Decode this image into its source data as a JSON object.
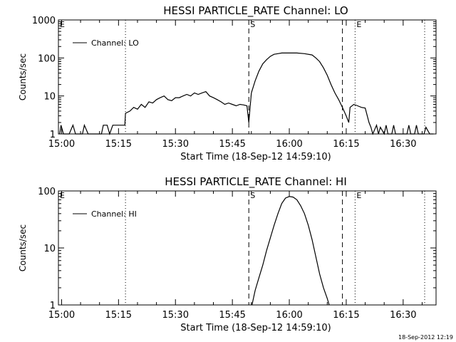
{
  "footer": {
    "timestamp": "18-Sep-2012 12:19"
  },
  "chart_data": [
    {
      "type": "line",
      "title": "HESSI PARTICLE_RATE Channel: LO",
      "xlabel": "Start Time (18-Sep-12 14:59:10)",
      "ylabel": "Counts/sec",
      "y_scale": "log",
      "xlim": [
        "14:59:10",
        "16:38:40"
      ],
      "ylim": [
        1,
        1000
      ],
      "x_ticks": [
        "15:00",
        "15:15",
        "15:30",
        "15:45",
        "16:00",
        "16:15",
        "16:30"
      ],
      "y_ticks": [
        "1",
        "10",
        "100",
        "1000"
      ],
      "legend": {
        "position": "top-left",
        "entries": [
          "Channel: LO"
        ]
      },
      "dashed_markers": [
        {
          "label": "S",
          "x": "15:49:20"
        },
        {
          "label": "E",
          "x": "16:14:00"
        }
      ],
      "dotted_lines": [
        "15:16:50",
        "16:17:20",
        "16:35:40"
      ],
      "series": [
        {
          "name": "Channel: LO",
          "x": [
            "14:59:30",
            "14:59:50",
            "15:00:30",
            "15:01:10",
            "15:02:00",
            "15:03:00",
            "15:03:40",
            "15:04:30",
            "15:05:30",
            "15:06:00",
            "15:07:00",
            "15:08:00",
            "15:08:30",
            "15:09:20",
            "15:10:30",
            "15:11:00",
            "15:12:00",
            "15:12:40",
            "15:13:30",
            "15:14:00",
            "15:15:00",
            "15:16:40",
            "15:16:50",
            "15:18:00",
            "15:19:00",
            "15:20:00",
            "15:21:00",
            "15:22:00",
            "15:23:00",
            "15:24:00",
            "15:25:00",
            "15:26:00",
            "15:27:00",
            "15:28:00",
            "15:29:00",
            "15:30:00",
            "15:31:00",
            "15:32:00",
            "15:33:00",
            "15:34:00",
            "15:35:00",
            "15:36:00",
            "15:37:00",
            "15:38:00",
            "15:39:00",
            "15:40:00",
            "15:41:00",
            "15:42:00",
            "15:43:00",
            "15:44:00",
            "15:45:00",
            "15:46:00",
            "15:47:00",
            "15:48:00",
            "15:48:50",
            "15:49:20",
            "15:49:40",
            "15:50:00",
            "15:51:00",
            "15:52:00",
            "15:53:00",
            "15:54:00",
            "15:55:00",
            "15:56:00",
            "15:57:00",
            "15:58:00",
            "16:00:00",
            "16:02:00",
            "16:04:00",
            "16:06:00",
            "16:07:00",
            "16:08:00",
            "16:09:00",
            "16:10:00",
            "16:11:00",
            "16:12:00",
            "16:13:00",
            "16:14:00",
            "16:15:00",
            "16:15:40",
            "16:16:00",
            "16:17:00",
            "16:18:00",
            "16:19:00",
            "16:20:00",
            "16:21:00",
            "16:21:30",
            "16:22:00",
            "16:23:00",
            "16:23:30",
            "16:24:00",
            "16:25:00",
            "16:25:30",
            "16:26:00",
            "16:27:00",
            "16:27:30",
            "16:28:00",
            "16:29:00",
            "16:29:30",
            "16:30:00",
            "16:31:00",
            "16:31:30",
            "16:32:00",
            "16:33:00",
            "16:33:30",
            "16:34:00",
            "16:35:00",
            "16:35:30",
            "16:36:00",
            "16:37:00",
            "16:38:00"
          ],
          "y": [
            1,
            1.7,
            1,
            1,
            1,
            1.7,
            1,
            1,
            1,
            1.7,
            1,
            1,
            1,
            1,
            1,
            1.7,
            1.7,
            1,
            1.7,
            1.7,
            1.7,
            1.7,
            3.5,
            4,
            5,
            4.5,
            6,
            5,
            7,
            6.5,
            8,
            9,
            10,
            8,
            7.5,
            9,
            9,
            10,
            11,
            10,
            12,
            11,
            12,
            13,
            10,
            9,
            8,
            7,
            6,
            6.5,
            6,
            5.5,
            6,
            5.8,
            5.5,
            2,
            5,
            12,
            25,
            45,
            70,
            90,
            110,
            125,
            130,
            135,
            135,
            135,
            130,
            120,
            100,
            80,
            55,
            35,
            20,
            12,
            8,
            5,
            3,
            2,
            5,
            6,
            5.5,
            5,
            4.8,
            2,
            1.5,
            1,
            1.7,
            1,
            1.5,
            1,
            1.7,
            1,
            1,
            1.7,
            1,
            1,
            1,
            1,
            1,
            1.7,
            1,
            1,
            1.7,
            1,
            1,
            1,
            1.5,
            1,
            1
          ]
        }
      ]
    },
    {
      "type": "line",
      "title": "HESSI PARTICLE_RATE Channel: HI",
      "xlabel": "Start Time (18-Sep-12 14:59:10)",
      "ylabel": "Counts/sec",
      "y_scale": "log",
      "xlim": [
        "14:59:10",
        "16:38:40"
      ],
      "ylim": [
        1,
        100
      ],
      "x_ticks": [
        "15:00",
        "15:15",
        "15:30",
        "15:45",
        "16:00",
        "16:15",
        "16:30"
      ],
      "y_ticks": [
        "1",
        "10",
        "100"
      ],
      "legend": {
        "position": "top-left",
        "entries": [
          "Channel: HI"
        ]
      },
      "dashed_markers": [
        {
          "label": "S",
          "x": "15:49:20"
        },
        {
          "label": "E",
          "x": "16:14:00"
        }
      ],
      "dotted_lines": [
        "15:16:50",
        "16:17:20",
        "16:35:40"
      ],
      "series": [
        {
          "name": "Channel: HI",
          "x": [
            "15:50:10",
            "15:51:00",
            "15:52:00",
            "15:53:00",
            "15:54:00",
            "15:55:00",
            "15:56:00",
            "15:57:00",
            "15:58:00",
            "15:59:00",
            "16:00:00",
            "16:01:00",
            "16:02:00",
            "16:03:00",
            "16:04:00",
            "16:05:00",
            "16:06:00",
            "16:07:00",
            "16:08:00",
            "16:09:00",
            "16:10:00",
            "16:10:30"
          ],
          "y": [
            1,
            1.8,
            3,
            5,
            9,
            15,
            25,
            40,
            60,
            75,
            80,
            78,
            70,
            55,
            40,
            25,
            14,
            7,
            3.5,
            2,
            1.3,
            1
          ]
        }
      ]
    }
  ]
}
